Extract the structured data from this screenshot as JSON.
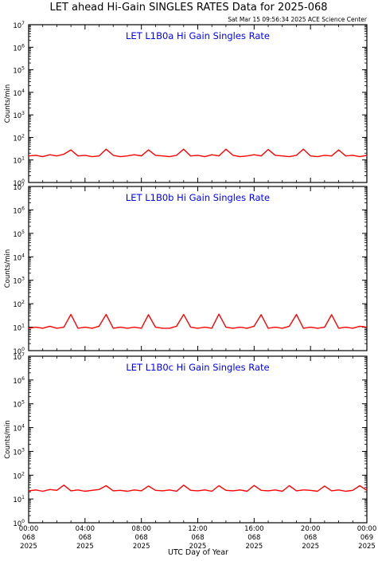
{
  "header": {
    "title": "LET ahead Hi-Gain SINGLES RATES Data for 2025-068",
    "timestamp": "Sat Mar 15 09:56:34 2025 ACE Science Center"
  },
  "colors": {
    "series": "#ff0000",
    "panel_title": "#0000ff",
    "axis": "#000000"
  },
  "xlabel": "UTC Day of Year",
  "ylabel": "Counts/min",
  "x_ticks": [
    {
      "label": [
        "00:00",
        "068",
        "2025"
      ],
      "hour": 0
    },
    {
      "label": [
        "04:00",
        "068",
        "2025"
      ],
      "hour": 4
    },
    {
      "label": [
        "08:00",
        "068",
        "2025"
      ],
      "hour": 8
    },
    {
      "label": [
        "12:00",
        "068",
        "2025"
      ],
      "hour": 12
    },
    {
      "label": [
        "16:00",
        "068",
        "2025"
      ],
      "hour": 16
    },
    {
      "label": [
        "20:00",
        "068",
        "2025"
      ],
      "hour": 20
    },
    {
      "label": [
        "00:00",
        "069",
        "2025"
      ],
      "hour": 24
    }
  ],
  "y_ticks": [
    {
      "base": "10",
      "exp": "0",
      "value": 1
    },
    {
      "base": "10",
      "exp": "1",
      "value": 10
    },
    {
      "base": "10",
      "exp": "2",
      "value": 100
    },
    {
      "base": "10",
      "exp": "3",
      "value": 1000
    },
    {
      "base": "10",
      "exp": "4",
      "value": 10000
    },
    {
      "base": "10",
      "exp": "5",
      "value": 100000
    },
    {
      "base": "10",
      "exp": "6",
      "value": 1000000
    },
    {
      "base": "10",
      "exp": "7",
      "value": 10000000
    }
  ],
  "chart_data": [
    {
      "type": "line",
      "panel_title": "LET L1B0a Hi Gain Singles Rate",
      "xlim": [
        0,
        24
      ],
      "ylim": [
        1,
        10000000
      ],
      "yscale": "log",
      "x_units": "hours of 2025-068 UTC",
      "grid": false,
      "series": [
        {
          "x": [
            0,
            0.5,
            1,
            1.5,
            2,
            2.5,
            3,
            3.5,
            4,
            4.5,
            5,
            5.5,
            6,
            6.5,
            7,
            7.5,
            8,
            8.5,
            9,
            9.5,
            10,
            10.5,
            11,
            11.5,
            12,
            12.5,
            13,
            13.5,
            14,
            14.5,
            15,
            15.5,
            16,
            16.5,
            17,
            17.5,
            18,
            18.5,
            19,
            19.5,
            20,
            20.5,
            21,
            21.5,
            22,
            22.5,
            23,
            23.5,
            24
          ],
          "y": [
            15,
            16,
            14,
            17,
            15,
            18,
            28,
            15,
            16,
            14,
            15,
            30,
            16,
            14,
            15,
            17,
            15,
            28,
            16,
            15,
            14,
            16,
            30,
            15,
            16,
            14,
            17,
            15,
            30,
            16,
            14,
            15,
            17,
            15,
            29,
            16,
            15,
            14,
            16,
            30,
            15,
            14,
            16,
            15,
            28,
            15,
            16,
            14,
            16
          ]
        }
      ]
    },
    {
      "type": "line",
      "panel_title": "LET L1B0b Hi Gain Singles Rate",
      "xlim": [
        0,
        24
      ],
      "ylim": [
        1,
        10000000
      ],
      "yscale": "log",
      "x_units": "hours of 2025-068 UTC",
      "grid": false,
      "series": [
        {
          "x": [
            0,
            0.5,
            1,
            1.5,
            2,
            2.5,
            3,
            3.5,
            4,
            4.5,
            5,
            5.5,
            6,
            6.5,
            7,
            7.5,
            8,
            8.5,
            9,
            9.5,
            10,
            10.5,
            11,
            11.5,
            12,
            12.5,
            13,
            13.5,
            14,
            14.5,
            15,
            15.5,
            16,
            16.5,
            17,
            17.5,
            18,
            18.5,
            19,
            19.5,
            20,
            20.5,
            21,
            21.5,
            22,
            22.5,
            23,
            23.5,
            24
          ],
          "y": [
            9,
            10,
            9,
            11,
            9,
            10,
            35,
            9,
            10,
            9,
            11,
            35,
            9,
            10,
            9,
            10,
            9,
            34,
            10,
            9,
            9,
            11,
            35,
            10,
            9,
            10,
            9,
            36,
            10,
            9,
            10,
            9,
            11,
            34,
            9,
            10,
            9,
            11,
            35,
            9,
            10,
            9,
            10,
            34,
            9,
            10,
            9,
            11,
            10
          ]
        }
      ]
    },
    {
      "type": "line",
      "panel_title": "LET L1B0c Hi Gain Singles Rate",
      "xlim": [
        0,
        24
      ],
      "ylim": [
        1,
        10000000
      ],
      "yscale": "log",
      "x_units": "hours of 2025-068 UTC",
      "grid": false,
      "series": [
        {
          "x": [
            0,
            0.5,
            1,
            1.5,
            2,
            2.5,
            3,
            3.5,
            4,
            4.5,
            5,
            5.5,
            6,
            6.5,
            7,
            7.5,
            8,
            8.5,
            9,
            9.5,
            10,
            10.5,
            11,
            11.5,
            12,
            12.5,
            13,
            13.5,
            14,
            14.5,
            15,
            15.5,
            16,
            16.5,
            17,
            17.5,
            18,
            18.5,
            19,
            19.5,
            20,
            20.5,
            21,
            21.5,
            22,
            22.5,
            23,
            23.5,
            24
          ],
          "y": [
            22,
            24,
            21,
            25,
            23,
            38,
            22,
            24,
            21,
            23,
            25,
            36,
            22,
            23,
            21,
            24,
            22,
            35,
            23,
            22,
            24,
            21,
            38,
            23,
            22,
            24,
            21,
            36,
            23,
            22,
            24,
            21,
            37,
            23,
            22,
            24,
            21,
            36,
            22,
            24,
            23,
            21,
            35,
            22,
            24,
            21,
            23,
            36,
            23
          ]
        }
      ]
    }
  ]
}
